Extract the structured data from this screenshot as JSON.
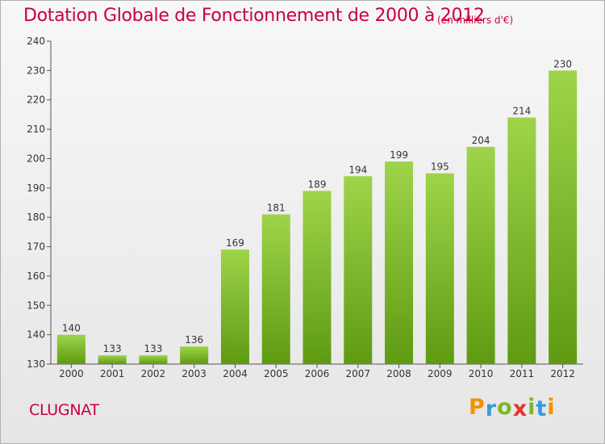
{
  "title": "Dotation Globale de Fonctionnement de 2000 à 2012",
  "subtitle": "(en milliers d'€)",
  "commune": "CLUGNAT",
  "logo": {
    "letters": [
      "P",
      "r",
      "o",
      "x",
      "i",
      "t",
      "i"
    ],
    "colors": [
      "#f39200",
      "#3a9ad9",
      "#7cb72b",
      "#e6332a",
      "#7cb72b",
      "#3a9ad9",
      "#f39200"
    ]
  },
  "colors": {
    "bar_top": "#9ed44a",
    "bar_bottom": "#5e9b12",
    "title": "#c8003c"
  },
  "chart_data": {
    "type": "bar",
    "title": "Dotation Globale de Fonctionnement de 2000 à 2012",
    "subtitle": "(en milliers d'€)",
    "xlabel": "",
    "ylabel": "",
    "categories": [
      "2000",
      "2001",
      "2002",
      "2003",
      "2004",
      "2005",
      "2006",
      "2007",
      "2008",
      "2009",
      "2010",
      "2011",
      "2012"
    ],
    "values": [
      140,
      133,
      133,
      136,
      169,
      181,
      189,
      194,
      199,
      195,
      204,
      214,
      230
    ],
    "ylim": [
      130,
      240
    ],
    "yticks": [
      130,
      140,
      150,
      160,
      170,
      180,
      190,
      200,
      210,
      220,
      230,
      240
    ],
    "grid": false,
    "legend": "none"
  }
}
